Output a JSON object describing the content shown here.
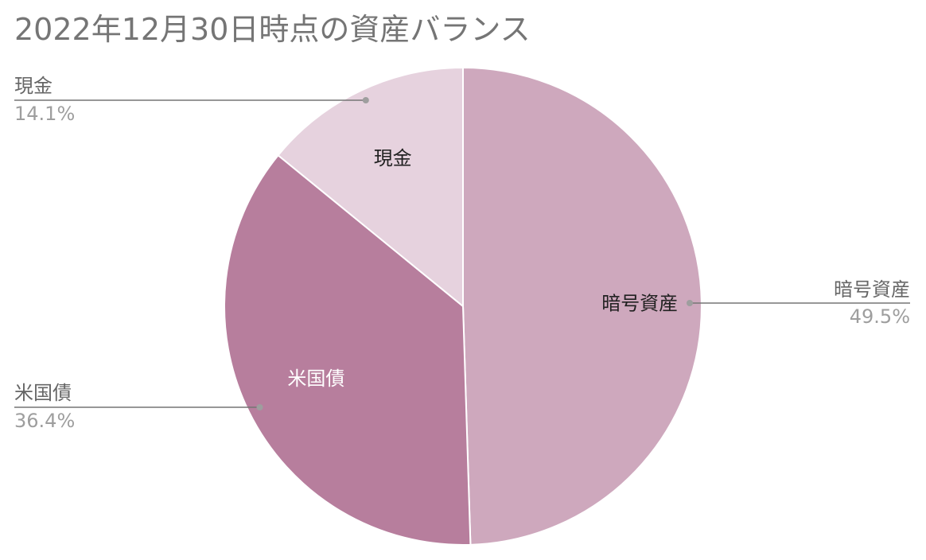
{
  "chart_data": {
    "type": "pie",
    "title": "2022年12月30日時点の資産バランス",
    "slices": [
      {
        "name": "暗号資産",
        "value": 49.5,
        "percent_label": "49.5%",
        "color": "#cea8bd",
        "inner_label_color": "#212121"
      },
      {
        "name": "米国債",
        "value": 36.4,
        "percent_label": "36.4%",
        "color": "#b77e9d",
        "inner_label_color": "#ffffff"
      },
      {
        "name": "現金",
        "value": 14.1,
        "percent_label": "14.1%",
        "color": "#e6d2de",
        "inner_label_color": "#212121"
      }
    ],
    "start": "12 o'clock",
    "direction": "clockwise",
    "legend": "none",
    "slice_border_color": "#ffffff",
    "leader_line_color": "#9e9e9e"
  }
}
